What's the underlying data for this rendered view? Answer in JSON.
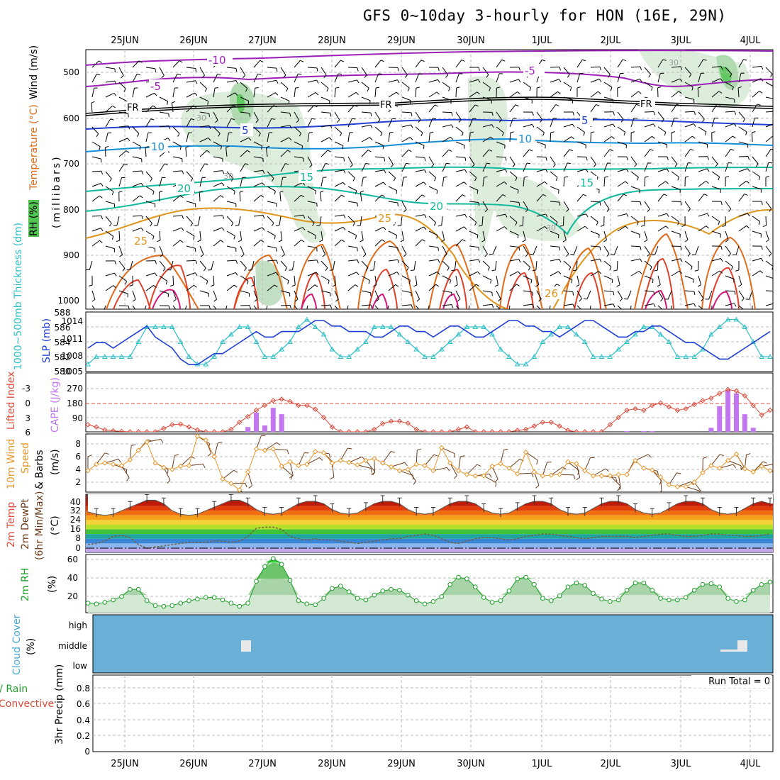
{
  "title": "GFS 0~10day 3-hourly for HON (16E, 29N)",
  "dates": [
    "25JUN",
    "26JUN",
    "27JUN",
    "28JUN",
    "29JUN",
    "30JUN",
    "1JUL",
    "2JUL",
    "3JUL",
    "4JUL"
  ],
  "colors": {
    "purple": "#9b1fb8",
    "dark_blue": "#1f3fd6",
    "blue": "#1590d8",
    "teal": "#10b89c",
    "green": "#1eb36a",
    "orange": "#e0951a",
    "dark_orange": "#e06b1a",
    "red": "#e0402a",
    "magenta": "#d6157a",
    "cyan": "#30c0c8",
    "slp_blue": "#1f3fd6",
    "cape": "#c277f0",
    "lifted": "#e04a3a",
    "wind10": "#e6962a",
    "cloud": "#6aafd6",
    "rh": "#1f9f2a"
  },
  "panels": {
    "upper": {
      "label_wind": "Wind (m/s)",
      "label_temp": "Temperature (°C)",
      "label_rh": "RH (%)",
      "label_mb": "(millibars)",
      "pressure_ticks": [
        "500",
        "600",
        "700",
        "800",
        "900",
        "1000"
      ],
      "fr_labels": [
        "FR",
        "FR",
        "FR"
      ],
      "contour_labels": [
        "-10",
        "-5",
        "-5",
        "5",
        "5",
        "10",
        "10",
        "15",
        "15",
        "20",
        "20",
        "25",
        "25",
        "26",
        "30",
        "30",
        "30",
        "30"
      ]
    },
    "slp": {
      "label_thick": "1000~500mb Thickness (dm)",
      "label_slp": "SLP (mb)",
      "thick_ticks": [
        "588",
        "586",
        "584",
        "582",
        "580"
      ],
      "slp_ticks": [
        "1014",
        "1011",
        "1008",
        "1005"
      ],
      "thickness": [
        581,
        582,
        582,
        582,
        582,
        582,
        584,
        586,
        586,
        586,
        586,
        584,
        582,
        581,
        581,
        582,
        584,
        585,
        586,
        586,
        584,
        582,
        582,
        583,
        584,
        586,
        587,
        586,
        585,
        583,
        582,
        582,
        583,
        584,
        586,
        586,
        586,
        585,
        584,
        583,
        582,
        582,
        583,
        584,
        585,
        586,
        586,
        586,
        585,
        583,
        582,
        581,
        581,
        582,
        584,
        585,
        586,
        586,
        585,
        584,
        582,
        582,
        582,
        583,
        584,
        585,
        586,
        586,
        585,
        584,
        582,
        582,
        582,
        583,
        585,
        586,
        587,
        587,
        586,
        584,
        582,
        582
      ],
      "slp": [
        1009,
        1010,
        1010,
        1009,
        1010,
        1011,
        1012,
        1013,
        1011,
        1010,
        1009,
        1007,
        1006,
        1006,
        1007,
        1008,
        1008,
        1009,
        1010,
        1011,
        1012,
        1011,
        1011,
        1012,
        1012,
        1012,
        1013,
        1014,
        1014,
        1013,
        1013,
        1012,
        1012,
        1012,
        1011,
        1011,
        1012,
        1013,
        1013,
        1012,
        1012,
        1011,
        1012,
        1013,
        1013,
        1012,
        1011,
        1011,
        1012,
        1013,
        1014,
        1014,
        1013,
        1013,
        1012,
        1012,
        1011,
        1012,
        1013,
        1014,
        1014,
        1013,
        1012,
        1011,
        1011,
        1012,
        1012,
        1013,
        1013,
        1012,
        1011,
        1010,
        1010,
        1009,
        1008,
        1007,
        1007,
        1008,
        1009,
        1010,
        1011,
        1012
      ]
    },
    "cape": {
      "label_li": "Lifted Index",
      "label_cape": "CAPE (J/kg)",
      "li_ticks": [
        "-3",
        "0",
        "3",
        "6"
      ],
      "cape_ticks": [
        "270",
        "180",
        "90"
      ],
      "lifted_index": [
        4.5,
        5.0,
        5.6,
        5.8,
        5.9,
        6.0,
        6.0,
        6.0,
        6.0,
        5.3,
        4.5,
        4.4,
        5.0,
        5.6,
        6.0,
        6.0,
        6.0,
        5.5,
        4.0,
        2.8,
        1.5,
        0.5,
        -0.5,
        -0.8,
        -0.3,
        0.5,
        0.5,
        1.3,
        3.0,
        5.0,
        6.0,
        6.0,
        6.0,
        6.0,
        5.5,
        4.3,
        3.8,
        3.8,
        4.2,
        5.5,
        6.0,
        6.0,
        6.0,
        6.0,
        5.5,
        5.0,
        6.0,
        6.0,
        6.0,
        6.0,
        6.0,
        5.7,
        5.5,
        4.8,
        4.0,
        4.0,
        4.8,
        5.7,
        6.0,
        6.0,
        6.0,
        6.0,
        4.5,
        3.0,
        1.5,
        1.2,
        1.5,
        0.5,
        0.0,
        0.8,
        1.5,
        1.2,
        0.3,
        -0.5,
        -1.0,
        -2.0,
        -2.8,
        -2.5,
        -1.5,
        0.5,
        2.5,
        1.5
      ],
      "cape_bars": [
        0,
        0,
        0,
        0,
        0,
        0,
        0,
        0,
        0,
        0,
        0,
        0,
        0,
        0,
        0,
        0,
        0,
        0,
        0,
        30,
        120,
        40,
        150,
        110,
        0,
        0,
        0,
        0,
        0,
        0,
        0,
        0,
        0,
        0,
        0,
        0,
        0,
        0,
        0,
        0,
        0,
        0,
        0,
        0,
        0,
        0,
        0,
        0,
        0,
        0,
        0,
        0,
        0,
        0,
        0,
        0,
        0,
        0,
        0,
        0,
        0,
        0,
        0,
        0,
        4,
        0,
        4,
        4,
        0,
        0,
        0,
        0,
        0,
        0,
        25,
        160,
        260,
        240,
        110,
        25,
        0,
        0
      ]
    },
    "wind10": {
      "label_a": "10m Wind",
      "label_b": "Speed",
      "label_c": "& Barbs",
      "label_unit": "(m/s)",
      "ticks": [
        "8",
        "6",
        "4",
        "2"
      ],
      "speed": [
        3.8,
        4.8,
        5.0,
        4.8,
        4.6,
        5.5,
        7.0,
        8.3,
        5.0,
        4.3,
        4.0,
        4.5,
        4.6,
        9.2,
        8.6,
        6.0,
        2.5,
        1.8,
        0.8,
        3.6,
        7.2,
        7.0,
        7.2,
        4.5,
        5.2,
        4.6,
        4.8,
        6.8,
        6.6,
        5.0,
        5.4,
        5.1,
        4.7,
        5.4,
        5.7,
        5.0,
        4.4,
        3.8,
        4.0,
        4.8,
        4.6,
        3.8,
        7.4,
        5.0,
        3.8,
        3.2,
        3.0,
        3.0,
        4.5,
        4.9,
        4.2,
        3.3,
        6.7,
        3.6,
        3.0,
        3.1,
        3.2,
        5.2,
        4.9,
        3.8,
        3.0,
        3.0,
        3.0,
        3.2,
        3.2,
        5.4,
        4.2,
        3.9,
        2.8,
        1.6,
        1.3,
        1.3,
        2.0,
        3.5,
        4.6,
        4.2,
        5.4,
        6.4,
        4.1,
        3.6,
        4.5,
        3.8
      ]
    },
    "temp2m": {
      "label_a": "2m Temp",
      "label_b": "2m DewPt",
      "label_c": "(6hr Min/Max)",
      "label_unit": "(°C)",
      "ticks": [
        "40",
        "32",
        "24",
        "16",
        "8",
        "0"
      ],
      "temp": [
        31,
        29,
        28,
        29,
        32,
        35,
        38,
        41,
        41,
        38,
        32,
        29,
        28,
        29,
        32,
        35,
        38,
        41,
        41,
        38,
        33,
        30,
        29,
        30,
        34,
        38,
        40,
        40,
        38,
        33,
        30,
        29,
        30,
        34,
        38,
        40,
        40,
        38,
        33,
        30,
        29,
        30,
        34,
        38,
        40,
        40,
        38,
        33,
        30,
        29,
        30,
        34,
        38,
        40,
        40,
        38,
        33,
        30,
        29,
        30,
        34,
        38,
        40,
        40,
        38,
        33,
        30,
        29,
        30,
        34,
        38,
        40,
        40,
        38,
        33,
        30,
        29,
        30,
        34,
        38,
        40,
        38
      ],
      "dewpt": [
        3,
        4,
        6,
        10,
        11,
        9,
        3,
        0,
        1,
        2,
        3,
        4,
        5,
        5,
        5,
        6,
        6,
        5,
        6,
        10,
        17,
        18,
        18,
        16,
        10,
        8,
        7,
        8,
        7,
        7,
        6,
        5,
        4,
        5,
        6,
        7,
        8,
        8,
        10,
        11,
        12,
        11,
        8,
        5,
        4,
        6,
        8,
        9,
        9,
        8,
        7,
        8,
        10,
        11,
        12,
        12,
        11,
        10,
        9,
        8,
        9,
        10,
        10,
        10,
        10,
        9,
        10,
        11,
        12,
        12,
        11,
        10,
        10,
        11,
        12,
        12,
        11,
        11,
        10,
        10,
        11,
        12
      ]
    },
    "rh2m": {
      "label_a": "2m RH",
      "label_unit": "(%)",
      "ticks": [
        "60",
        "40",
        "20"
      ],
      "rh": [
        10,
        9,
        11,
        14,
        18,
        27,
        27,
        13,
        7,
        6,
        7,
        10,
        13,
        15,
        17,
        17,
        14,
        10,
        6,
        10,
        37,
        55,
        65,
        58,
        38,
        13,
        9,
        8,
        16,
        28,
        31,
        24,
        16,
        14,
        20,
        25,
        27,
        26,
        20,
        13,
        9,
        12,
        18,
        33,
        42,
        40,
        30,
        17,
        11,
        13,
        25,
        40,
        42,
        33,
        16,
        13,
        19,
        30,
        35,
        32,
        22,
        15,
        12,
        14,
        26,
        35,
        35,
        26,
        16,
        14,
        14,
        17,
        26,
        33,
        34,
        30,
        16,
        12,
        14,
        26,
        33,
        36
      ]
    },
    "cloud": {
      "label_a": "Cloud Cover",
      "label_unit": "(%)",
      "levels": [
        "high",
        "middle",
        "low"
      ]
    },
    "precip": {
      "label_a": "3hr Precip (mm)",
      "label_total": "Total / Rain",
      "label_conv": "Convective",
      "run_total": "Run Total = 0",
      "ticks": [
        "0.8",
        "0.6",
        "0.4",
        "0.2",
        "0"
      ]
    }
  }
}
